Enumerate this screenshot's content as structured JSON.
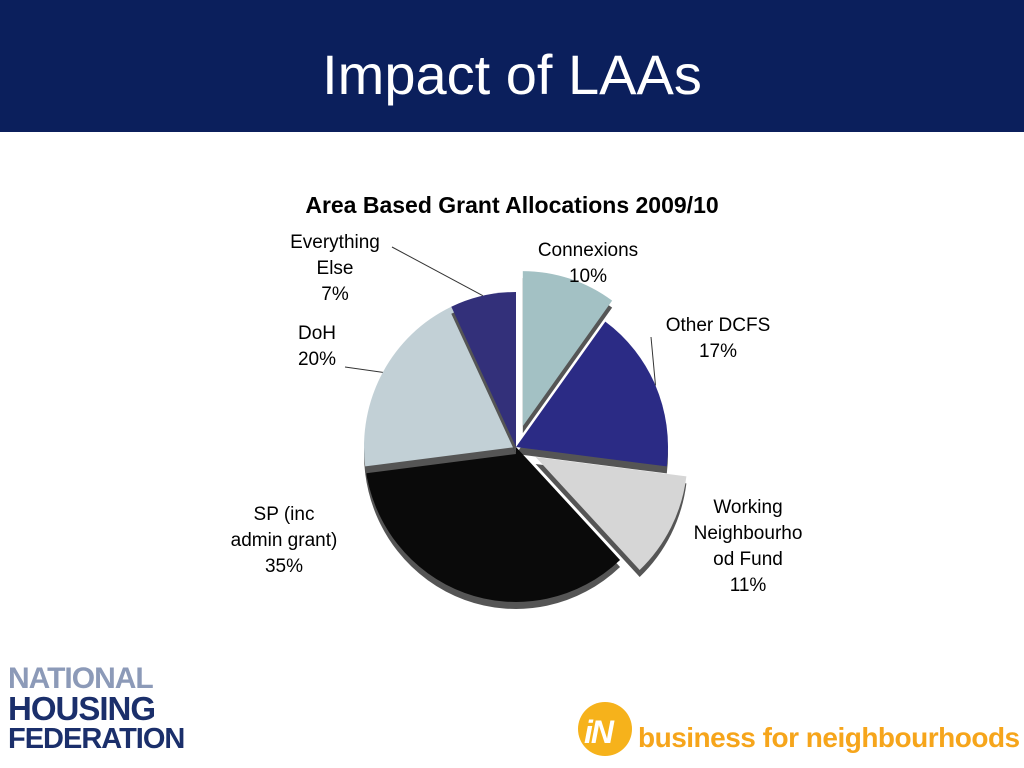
{
  "slide": {
    "title": "Impact of LAAs"
  },
  "chart_data": {
    "type": "pie",
    "title": "Area Based Grant Allocations 2009/10",
    "slices": [
      {
        "label_lines": [
          "Connexions",
          "10%"
        ],
        "value": 10,
        "color": "#a3c1c4",
        "exploded": true
      },
      {
        "label_lines": [
          "Other DCFS",
          "17%"
        ],
        "value": 17,
        "color": "#2b2b85",
        "exploded": false
      },
      {
        "label_lines": [
          "Working",
          "Neighbourho",
          "od Fund",
          "11%"
        ],
        "value": 11,
        "color": "#d6d6d6",
        "exploded": true
      },
      {
        "label_lines": [
          "SP (inc",
          "admin grant)",
          "35%"
        ],
        "value": 35,
        "color": "#0a0a0a",
        "exploded": false
      },
      {
        "label_lines": [
          "DoH",
          "20%"
        ],
        "value": 20,
        "color": "#c2d0d6",
        "exploded": false
      },
      {
        "label_lines": [
          "Everything",
          "Else",
          "7%"
        ],
        "value": 7,
        "color": "#33307a",
        "exploded": false
      }
    ]
  },
  "logos": {
    "nhf": [
      "NATIONAL",
      "HOUSING",
      "FEDERATION"
    ],
    "bfn_mark": "iN",
    "bfn_tagline": "business for neighbourhoods"
  }
}
